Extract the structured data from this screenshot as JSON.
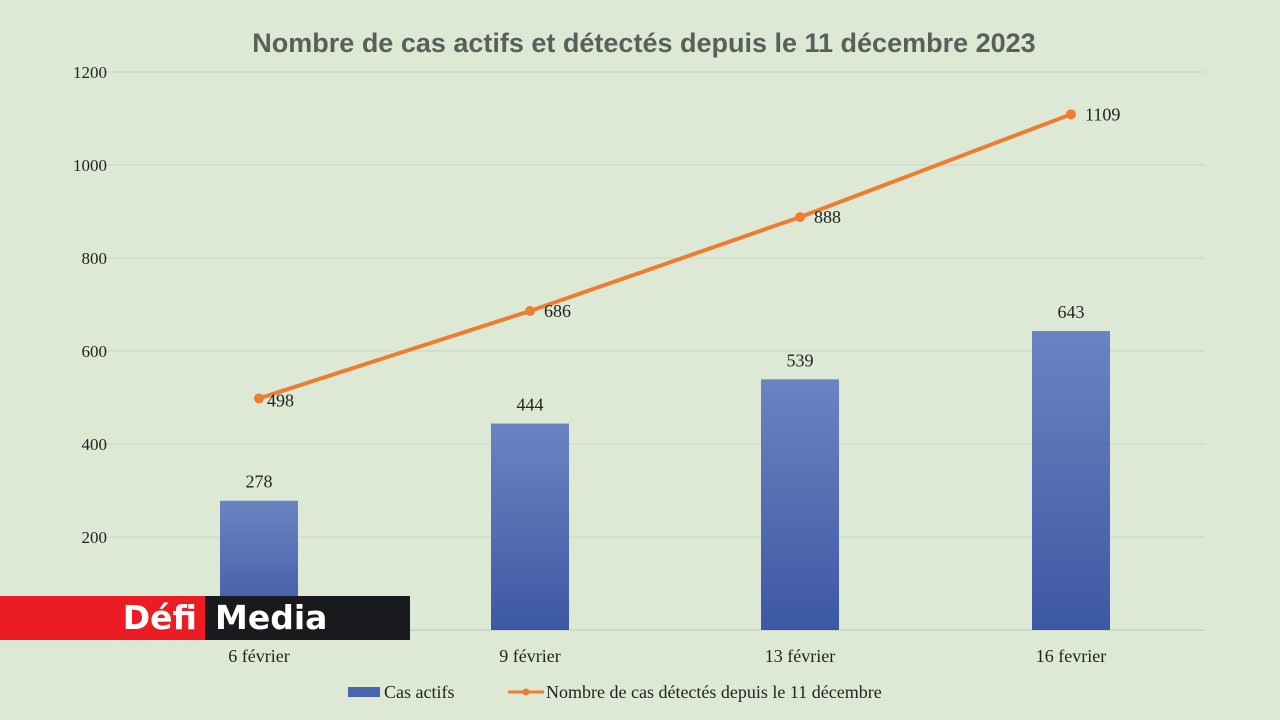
{
  "chart_data": {
    "type": "bar+line",
    "title": "Nombre de cas actifs et détectés depuis le 11 décembre 2023",
    "categories": [
      "6 février",
      "9 février",
      "13 février",
      "16 fevrier"
    ],
    "series": [
      {
        "name": "Cas actifs",
        "type": "bar",
        "values": [
          278,
          444,
          539,
          643
        ],
        "color": "#4a66ae"
      },
      {
        "name": "Nombre de cas détectés depuis le 11 décembre",
        "type": "line",
        "values": [
          498,
          686,
          888,
          1109
        ],
        "color": "#ed7d31"
      }
    ],
    "yticks": [
      200,
      400,
      600,
      800,
      1000,
      1200
    ],
    "ylim": [
      0,
      1200
    ],
    "grid": true,
    "legend": "bottom"
  },
  "logo": {
    "part1": "Défi",
    "part2": "Media"
  }
}
